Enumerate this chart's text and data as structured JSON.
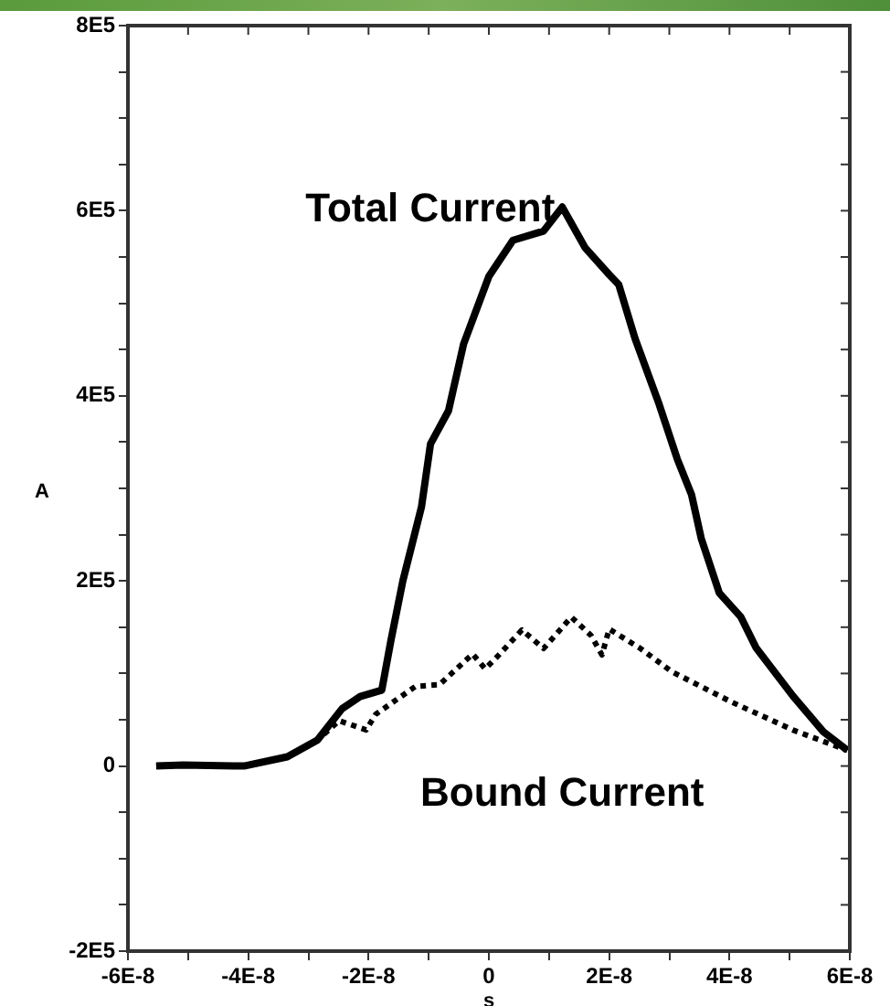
{
  "chart_data": {
    "type": "line",
    "xlabel": "s",
    "ylabel": "A",
    "xlim": [
      -6e-08,
      6e-08
    ],
    "xticks": [
      {
        "value": -6e-08,
        "label": "-6E-8"
      },
      {
        "value": -5e-08,
        "label": null
      },
      {
        "value": -4e-08,
        "label": "-4E-8"
      },
      {
        "value": -3e-08,
        "label": null
      },
      {
        "value": -2e-08,
        "label": "-2E-8"
      },
      {
        "value": -1e-08,
        "label": null
      },
      0,
      {
        "value": 1e-08,
        "label": null
      },
      {
        "value": 2e-08,
        "label": "2E-8"
      },
      {
        "value": 3e-08,
        "label": null
      },
      {
        "value": 4e-08,
        "label": "4E-8"
      },
      {
        "value": 5e-08,
        "label": null
      },
      {
        "value": 6e-08,
        "label": "6E-8"
      }
    ],
    "ylim": [
      -200000,
      800000
    ],
    "yticks": [
      {
        "value": -200000,
        "label": "-2E5"
      },
      {
        "value": -150000,
        "label": null
      },
      {
        "value": -100000,
        "label": null
      },
      {
        "value": -50000,
        "label": null
      },
      0,
      {
        "value": 50000,
        "label": null
      },
      {
        "value": 100000,
        "label": null
      },
      {
        "value": 150000,
        "label": null
      },
      {
        "value": 200000,
        "label": "2E5"
      },
      {
        "value": 250000,
        "label": null
      },
      {
        "value": 300000,
        "label": null
      },
      {
        "value": 350000,
        "label": null
      },
      {
        "value": 400000,
        "label": "4E5"
      },
      {
        "value": 450000,
        "label": null
      },
      {
        "value": 500000,
        "label": null
      },
      {
        "value": 550000,
        "label": null
      },
      {
        "value": 600000,
        "label": "6E5"
      },
      {
        "value": 650000,
        "label": null
      },
      {
        "value": 700000,
        "label": null
      },
      {
        "value": 750000,
        "label": null
      },
      {
        "value": 800000,
        "label": "8E5"
      }
    ],
    "grid": false,
    "legend": false,
    "series": [
      {
        "name": "Total Current",
        "color": "#000000",
        "marker": "none",
        "line_style": "solid",
        "x": [
          -5.53e-08,
          -5.08e-08,
          -4.07e-08,
          -3.35e-08,
          -2.85e-08,
          -2.44e-08,
          -2.14e-08,
          -1.78e-08,
          -1.63e-08,
          -1.43e-08,
          -1.12e-08,
          -9.7e-09,
          -6.7e-09,
          -4.2e-09,
          0,
          4e-09,
          9.1e-09,
          1.22e-08,
          1.6e-08,
          2e-08,
          2.16e-08,
          2.43e-08,
          2.83e-08,
          3.13e-08,
          3.37e-08,
          3.53e-08,
          3.83e-08,
          4.19e-08,
          4.44e-08,
          5.05e-08,
          5.56e-08,
          5.96e-08
        ],
        "values": [
          0,
          1000,
          0,
          10000,
          28000,
          62000,
          75000,
          82000,
          135000,
          200000,
          280000,
          348000,
          384000,
          456000,
          529000,
          568000,
          578000,
          604000,
          560000,
          531000,
          520000,
          462000,
          391000,
          332000,
          293000,
          246000,
          187000,
          161000,
          128000,
          76000,
          37000,
          17000
        ]
      },
      {
        "name": "Bound Current",
        "color": "#000000",
        "marker": "none",
        "line_style": "dotted",
        "x": [
          -5.53e-08,
          -5.08e-08,
          -4.07e-08,
          -3.35e-08,
          -2.85e-08,
          -2.49e-08,
          -2.04e-08,
          -1.88e-08,
          -1.22e-08,
          -8.2e-09,
          -2.7e-09,
          -6e-10,
          1.8e-09,
          5.5e-09,
          9.1e-09,
          1.37e-08,
          1.7e-08,
          1.88e-08,
          2e-08,
          2.52e-08,
          3.04e-08,
          4.04e-08,
          5.05e-08,
          5.96e-08
        ],
        "values": [
          0,
          1000,
          0,
          10000,
          28000,
          49000,
          39000,
          56000,
          86000,
          88000,
          121000,
          105000,
          121000,
          147000,
          127000,
          161000,
          141000,
          120000,
          148000,
          127000,
          102000,
          69000,
          39000,
          17000
        ]
      }
    ]
  }
}
